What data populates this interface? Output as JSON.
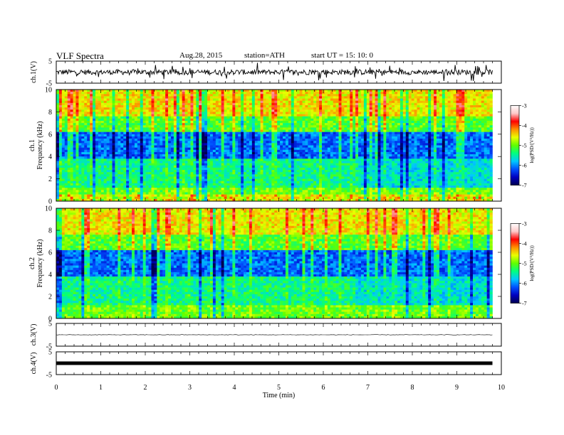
{
  "header": {
    "title": "VLF  Spectra",
    "date": "Aug.28, 2015",
    "station": "station=ATH",
    "start": "start  UT =   15: 10: 0"
  },
  "colors": {
    "colormap": [
      "#000050",
      "#0000c0",
      "#0050ff",
      "#00c8ff",
      "#00ff80",
      "#60ff00",
      "#e8ff00",
      "#ff9000",
      "#ff0000",
      "#ffc8c8",
      "#ffffff"
    ],
    "trace": "#000000"
  },
  "chart_data": [
    {
      "type": "line",
      "panel": "ch1-waveform",
      "ylabel": "ch.1(V)",
      "ylim": [
        -5,
        5
      ],
      "yticks": [
        "5",
        "-5"
      ],
      "description_values": {
        "mean": 0,
        "noise_amplitude": 1.2
      }
    },
    {
      "type": "heatmap",
      "panel": "ch1-spectrogram",
      "ylabel_channel": "ch.1",
      "ylabel": "Frequency  (kHz)",
      "ylim": [
        0,
        10
      ],
      "yticks": [
        "0",
        "2",
        "4",
        "6",
        "8",
        "10"
      ],
      "xlim": [
        0,
        10
      ],
      "data_end_min": 9.8,
      "colorbar": {
        "label": "log(PSD/(V²/Hz))",
        "range": [
          -7,
          -3
        ],
        "ticks": [
          "-3",
          "-4",
          "-5",
          "-6",
          "-7"
        ]
      }
    },
    {
      "type": "heatmap",
      "panel": "ch2-spectrogram",
      "ylabel_channel": "ch.2",
      "ylabel": "Frequency  (kHz)",
      "ylim": [
        0,
        10
      ],
      "yticks": [
        "0",
        "2",
        "4",
        "6",
        "8",
        "10"
      ],
      "xlim": [
        0,
        10
      ],
      "data_end_min": 9.8,
      "colorbar": {
        "label": "log(PSD/(V²/Hz))",
        "range": [
          -7,
          -3
        ],
        "ticks": [
          "-3",
          "-4",
          "-5",
          "-6",
          "-7"
        ]
      }
    },
    {
      "type": "line",
      "panel": "ch3-waveform",
      "ylabel": "ch.3(V)",
      "ylim": [
        -5,
        5
      ],
      "yticks": [
        "5",
        "-5"
      ],
      "description_values": {
        "mean": 0,
        "noise_amplitude": 0.1
      }
    },
    {
      "type": "line",
      "panel": "ch4-waveform",
      "ylabel": "ch.4(V)",
      "ylim": [
        -5,
        5
      ],
      "yticks": [
        "5",
        "-5"
      ],
      "description_values": {
        "mean": 0,
        "noise_amplitude": 0.3
      }
    }
  ],
  "xaxis": {
    "xlabel": "Time  (min)",
    "xlim": [
      0,
      10
    ],
    "ticks": [
      "0",
      "1",
      "2",
      "3",
      "4",
      "5",
      "6",
      "7",
      "8",
      "9",
      "10"
    ]
  }
}
